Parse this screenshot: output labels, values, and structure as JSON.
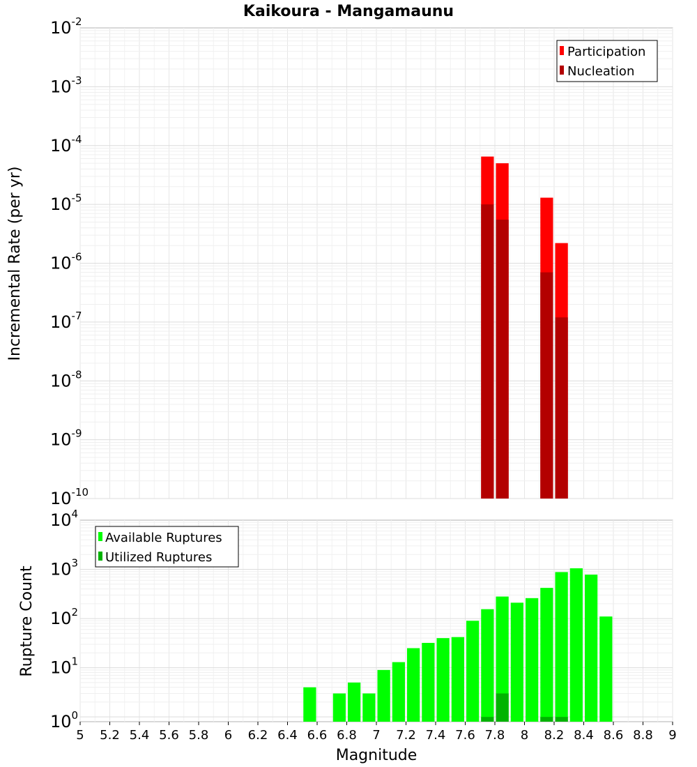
{
  "chart_data": [
    {
      "type": "bar",
      "title": "Kaikoura - Mangamaunu",
      "xlabel": "",
      "ylabel": "Incremental Rate (per yr)",
      "yscale": "log",
      "xlim": [
        5,
        9
      ],
      "ylim_exponents": [
        -10,
        -2
      ],
      "ytick_exponents": [
        "-10",
        "-9",
        "-8",
        "-7",
        "-6",
        "-5",
        "-4",
        "-3",
        "-2"
      ],
      "bin_width": 0.1,
      "legend_position": "top-right",
      "series": [
        {
          "name": "Participation",
          "color": "#ff0000",
          "x": [
            7.75,
            7.85,
            8.15,
            8.25
          ],
          "values": [
            6.5e-05,
            5e-05,
            1.3e-05,
            2.2e-06
          ]
        },
        {
          "name": "Nucleation",
          "color": "#b30000",
          "x": [
            7.75,
            7.85,
            8.15,
            8.25
          ],
          "values": [
            1e-05,
            5.5e-06,
            7e-07,
            1.2e-07
          ]
        }
      ]
    },
    {
      "type": "bar",
      "title": "",
      "xlabel": "Magnitude",
      "ylabel": "Rupture Count",
      "yscale": "log",
      "xlim": [
        5,
        9
      ],
      "ylim_exponents": [
        0,
        4
      ],
      "ylim": [
        0.8,
        10000
      ],
      "ytick_exponents": [
        "0",
        "1",
        "2",
        "3",
        "4"
      ],
      "xticks": [
        "5",
        "5.2",
        "5.4",
        "5.6",
        "5.8",
        "6",
        "6.2",
        "6.4",
        "6.6",
        "6.8",
        "7",
        "7.2",
        "7.4",
        "7.6",
        "7.8",
        "8",
        "8.2",
        "8.4",
        "8.6",
        "8.8",
        "9"
      ],
      "bin_width": 0.1,
      "legend_position": "top-left",
      "series": [
        {
          "name": "Available Ruptures",
          "color": "#00ff00",
          "x": [
            6.55,
            6.75,
            6.85,
            6.95,
            7.05,
            7.15,
            7.25,
            7.35,
            7.45,
            7.55,
            7.65,
            7.75,
            7.85,
            7.95,
            8.05,
            8.15,
            8.25,
            8.35,
            8.45,
            8.55
          ],
          "values": [
            4,
            3,
            5,
            3,
            9,
            13,
            25,
            32,
            40,
            42,
            90,
            155,
            280,
            210,
            260,
            420,
            880,
            1050,
            780,
            110
          ]
        },
        {
          "name": "Utilized Ruptures",
          "color": "#00b300",
          "x": [
            7.75,
            7.85,
            8.15,
            8.25
          ],
          "values": [
            1,
            3,
            1,
            1
          ]
        }
      ]
    }
  ]
}
